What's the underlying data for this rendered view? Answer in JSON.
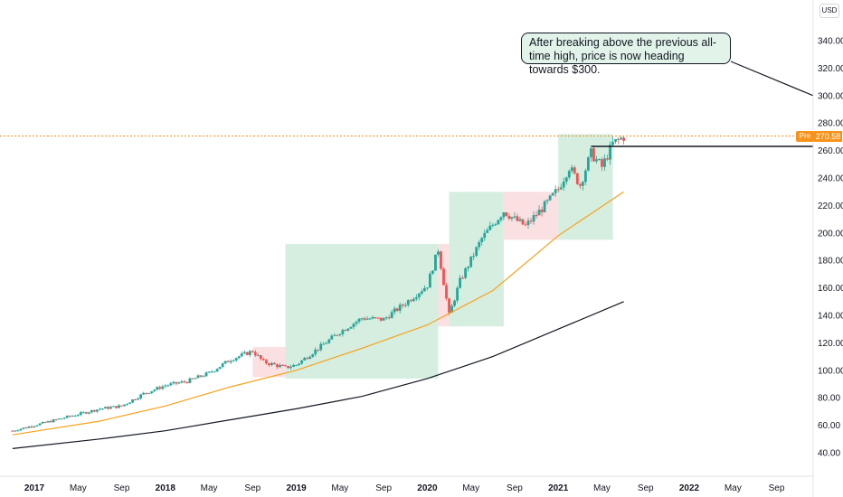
{
  "currency": "USD",
  "pre_label": "Pre",
  "last_price_label": "270.58",
  "annotation": "After breaking above the previous all-time high, price is now heading towards $300.",
  "colors": {
    "up": "#26a69a",
    "down": "#ef5350",
    "ma_fast": "#f7a21b",
    "ma_slow": "#131722",
    "box_green": "#d5eee0",
    "box_red": "#fbe0e2",
    "accent": "#f7931a"
  },
  "chart_data": {
    "type": "candlestick",
    "y_ticks": [
      "40.00",
      "60.00",
      "80.00",
      "100.00",
      "120.00",
      "140.00",
      "160.00",
      "180.00",
      "200.00",
      "220.00",
      "240.00",
      "260.00",
      "280.00",
      "300.00",
      "320.00",
      "340.00"
    ],
    "x_ticks": [
      "2017",
      "May",
      "Sep",
      "2018",
      "May",
      "Sep",
      "2019",
      "May",
      "Sep",
      "2020",
      "May",
      "Sep",
      "2021",
      "May",
      "Sep",
      "2022",
      "May",
      "Sep"
    ],
    "ylim": [
      25,
      355
    ],
    "last_price": 270.58,
    "target_level": 300,
    "ath_level": 263,
    "xlim": [
      "2016-11",
      "2022-12"
    ],
    "price_path": [
      [
        "2016-11",
        56
      ],
      [
        "2017-01",
        60
      ],
      [
        "2017-03",
        64
      ],
      [
        "2017-05",
        68
      ],
      [
        "2017-07",
        72
      ],
      [
        "2017-09",
        74
      ],
      [
        "2017-11",
        83
      ],
      [
        "2018-01",
        89
      ],
      [
        "2018-03",
        92
      ],
      [
        "2018-05",
        98
      ],
      [
        "2018-07",
        108
      ],
      [
        "2018-09",
        114
      ],
      [
        "2018-10",
        106
      ],
      [
        "2018-12",
        102
      ],
      [
        "2019-01",
        104
      ],
      [
        "2019-03",
        116
      ],
      [
        "2019-05",
        128
      ],
      [
        "2019-07",
        138
      ],
      [
        "2019-09",
        137
      ],
      [
        "2019-11",
        149
      ],
      [
        "2020-01",
        162
      ],
      [
        "2020-02",
        188
      ],
      [
        "2020-03",
        140
      ],
      [
        "2020-04",
        165
      ],
      [
        "2020-06",
        196
      ],
      [
        "2020-08",
        216
      ],
      [
        "2020-09",
        210
      ],
      [
        "2020-10",
        205
      ],
      [
        "2020-12",
        222
      ],
      [
        "2021-01",
        232
      ],
      [
        "2021-02",
        248
      ],
      [
        "2021-03",
        235
      ],
      [
        "2021-04",
        258
      ],
      [
        "2021-05",
        248
      ],
      [
        "2021-06",
        265
      ],
      [
        "2021-07",
        270
      ]
    ],
    "ma_fast": [
      [
        "2016-11",
        53
      ],
      [
        "2017-07",
        63
      ],
      [
        "2018-01",
        74
      ],
      [
        "2018-07",
        88
      ],
      [
        "2019-01",
        100
      ],
      [
        "2019-07",
        116
      ],
      [
        "2020-01",
        133
      ],
      [
        "2020-07",
        158
      ],
      [
        "2021-01",
        198
      ],
      [
        "2021-07",
        230
      ]
    ],
    "ma_slow": [
      [
        "2016-11",
        43
      ],
      [
        "2017-07",
        50
      ],
      [
        "2018-01",
        56
      ],
      [
        "2018-07",
        64
      ],
      [
        "2019-01",
        72
      ],
      [
        "2019-07",
        81
      ],
      [
        "2020-01",
        94
      ],
      [
        "2020-07",
        110
      ],
      [
        "2021-01",
        130
      ],
      [
        "2021-07",
        150
      ]
    ],
    "zones": [
      {
        "kind": "red",
        "x0": "2018-09",
        "x1": "2018-12",
        "y0": 95,
        "y1": 117
      },
      {
        "kind": "green",
        "x0": "2018-12",
        "x1": "2020-02",
        "y0": 94,
        "y1": 192
      },
      {
        "kind": "red",
        "x0": "2020-02",
        "x1": "2020-03",
        "y0": 132,
        "y1": 192
      },
      {
        "kind": "green",
        "x0": "2020-03",
        "x1": "2020-08",
        "y0": 132,
        "y1": 230
      },
      {
        "kind": "red",
        "x0": "2020-08",
        "x1": "2021-01",
        "y0": 195,
        "y1": 230
      },
      {
        "kind": "green",
        "x0": "2021-01",
        "x1": "2021-06",
        "y0": 195,
        "y1": 272
      }
    ]
  }
}
